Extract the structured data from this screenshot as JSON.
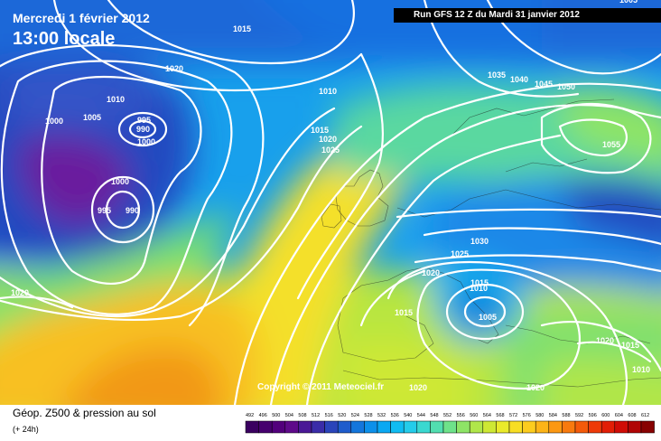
{
  "header": {
    "date_label": "Mercredi 1 février 2012",
    "time_label": "13:00 locale",
    "run_label": "Run GFS 12 Z du Mardi 31 janvier 2012"
  },
  "copyright": "Copyright © 2011 Meteociel.fr",
  "footer": {
    "title": "Géop. Z500 & pression au sol",
    "subtitle": "(+ 24h)"
  },
  "legend": {
    "values": [
      "492",
      "496",
      "500",
      "504",
      "508",
      "512",
      "516",
      "520",
      "524",
      "528",
      "532",
      "536",
      "540",
      "544",
      "548",
      "552",
      "556",
      "560",
      "564",
      "568",
      "572",
      "576",
      "580",
      "584",
      "588",
      "592",
      "596",
      "600",
      "604",
      "608",
      "612"
    ],
    "colors": [
      "#3a0060",
      "#46006e",
      "#52007c",
      "#5e0a8a",
      "#4a1896",
      "#3a2ca8",
      "#2a44ba",
      "#1e5ccc",
      "#1476dc",
      "#0c90ea",
      "#0aa8f2",
      "#10bcf2",
      "#24ccea",
      "#3ad8d0",
      "#52deb0",
      "#6ee28a",
      "#8ee466",
      "#b0e64a",
      "#cee834",
      "#eaea2a",
      "#f8de24",
      "#fccc1e",
      "#fcb418",
      "#fc9812",
      "#f87a0e",
      "#f45a0a",
      "#ee3a08",
      "#e21e06",
      "#d00c06",
      "#b00404",
      "#880202"
    ]
  },
  "isobars": [
    {
      "text": "1015"
    },
    {
      "text": "1020"
    },
    {
      "text": "1010"
    },
    {
      "text": "1000"
    },
    {
      "text": "1005"
    },
    {
      "text": "995"
    },
    {
      "text": "990"
    },
    {
      "text": "1000"
    },
    {
      "text": "1000"
    },
    {
      "text": "995"
    },
    {
      "text": "990"
    },
    {
      "text": "1020"
    },
    {
      "text": "1010"
    },
    {
      "text": "1015"
    },
    {
      "text": "1020"
    },
    {
      "text": "1025"
    },
    {
      "text": "1035"
    },
    {
      "text": "1040"
    },
    {
      "text": "1045"
    },
    {
      "text": "1050"
    },
    {
      "text": "1055"
    },
    {
      "text": "1005"
    },
    {
      "text": "1030"
    },
    {
      "text": "1025"
    },
    {
      "text": "1020"
    },
    {
      "text": "1015"
    },
    {
      "text": "1010"
    },
    {
      "text": "1005"
    },
    {
      "text": "1015"
    },
    {
      "text": "1020"
    },
    {
      "text": "1020"
    },
    {
      "text": "1015"
    },
    {
      "text": "1010"
    },
    {
      "text": "1020"
    }
  ]
}
